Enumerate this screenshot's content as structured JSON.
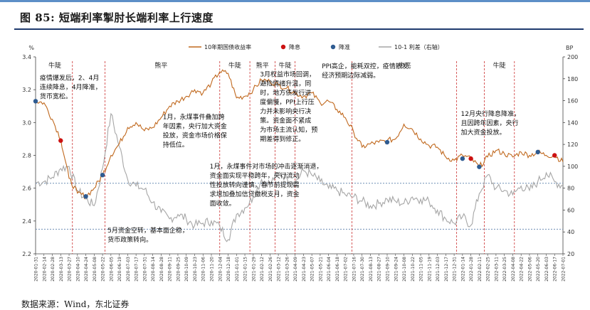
{
  "figure": {
    "title": "图  85:  短端利率掣肘长端利率上行速度",
    "source": "数据来源：Wind，东北证券"
  },
  "chart_data": {
    "type": "line",
    "title": "",
    "left_axis": {
      "unit": "%",
      "ylim": [
        2.2,
        3.4
      ],
      "ticks": [
        "2.2",
        "2.4",
        "2.6",
        "2.8",
        "3.0",
        "3.2",
        "3.4"
      ]
    },
    "right_axis": {
      "unit": "BP",
      "ylim": [
        20,
        200
      ],
      "ticks": [
        "20",
        "40",
        "60",
        "80",
        "100",
        "120",
        "140",
        "160",
        "180",
        "200"
      ]
    },
    "x_ticks": [
      "2020-01-31",
      "2020-02-14",
      "2020-02-28",
      "2020-03-13",
      "2020-03-27",
      "2020-04-10",
      "2020-04-24",
      "2020-05-08",
      "2020-05-22",
      "2020-06-05",
      "2020-06-19",
      "2020-07-03",
      "2020-07-17",
      "2020-07-31",
      "2020-08-14",
      "2020-08-28",
      "2020-09-11",
      "2020-09-25",
      "2020-10-09",
      "2020-10-23",
      "2020-11-06",
      "2020-11-20",
      "2020-12-04",
      "2020-12-18",
      "2021-01-01",
      "2021-01-15",
      "2021-01-29",
      "2021-02-12",
      "2021-02-26",
      "2021-03-12",
      "2021-03-26",
      "2021-04-09",
      "2021-04-23",
      "2021-05-07",
      "2021-05-21",
      "2021-06-04",
      "2021-06-18",
      "2021-07-02",
      "2021-07-16",
      "2021-07-30",
      "2021-08-13",
      "2021-08-27",
      "2021-09-10",
      "2021-09-24",
      "2021-10-08",
      "2021-10-22",
      "2021-11-05",
      "2021-11-19",
      "2021-12-03",
      "2021-12-17",
      "2021-12-31",
      "2022-01-14",
      "2022-01-28",
      "2022-02-11",
      "2022-02-25",
      "2022-03-11",
      "2022-03-25",
      "2022-04-08",
      "2022-04-22",
      "2022-05-06",
      "2022-05-20",
      "2022-06-03",
      "2022-06-17",
      "2022-07-01"
    ],
    "legend": [
      "10年期国债收益率",
      "降息",
      "降准",
      "10-1 利差（右轴）"
    ],
    "legend_position": "top",
    "colors": {
      "yield": "#c0681d",
      "cut_rate": "#cc1111",
      "rrr": "#2e5b91",
      "spread": "#a6a6a6",
      "hline": "#6f8fb5",
      "vline": "#cc3333"
    },
    "yield_anchors": [
      [
        0,
        3.13
      ],
      [
        1,
        3.12
      ],
      [
        2,
        3.02
      ],
      [
        3,
        2.9
      ],
      [
        4,
        2.66
      ],
      [
        5,
        2.57
      ],
      [
        6,
        2.55
      ],
      [
        7,
        2.6
      ],
      [
        8,
        2.68
      ],
      [
        9,
        2.8
      ],
      [
        10,
        2.87
      ],
      [
        11,
        2.97
      ],
      [
        12,
        3.0
      ],
      [
        13,
        2.95
      ],
      [
        14,
        2.97
      ],
      [
        15,
        3.03
      ],
      [
        16,
        3.1
      ],
      [
        17,
        3.13
      ],
      [
        18,
        3.16
      ],
      [
        19,
        3.2
      ],
      [
        20,
        3.18
      ],
      [
        21,
        3.24
      ],
      [
        22,
        3.31
      ],
      [
        23,
        3.3
      ],
      [
        24,
        3.15
      ],
      [
        25,
        3.16
      ],
      [
        26,
        3.2
      ],
      [
        27,
        3.26
      ],
      [
        28,
        3.25
      ],
      [
        29,
        3.23
      ],
      [
        30,
        3.21
      ],
      [
        31,
        3.18
      ],
      [
        32,
        3.16
      ],
      [
        33,
        3.18
      ],
      [
        34,
        3.12
      ],
      [
        35,
        3.13
      ],
      [
        36,
        3.08
      ],
      [
        37,
        3.03
      ],
      [
        38,
        2.94
      ],
      [
        39,
        2.85
      ],
      [
        40,
        2.87
      ],
      [
        41,
        2.88
      ],
      [
        42,
        2.89
      ],
      [
        43,
        2.9
      ],
      [
        44,
        2.99
      ],
      [
        45,
        2.96
      ],
      [
        46,
        2.9
      ],
      [
        47,
        2.86
      ],
      [
        48,
        2.85
      ],
      [
        49,
        2.79
      ],
      [
        50,
        2.77
      ],
      [
        51,
        2.8
      ],
      [
        52,
        2.78
      ],
      [
        53,
        2.73
      ],
      [
        54,
        2.79
      ],
      [
        55,
        2.83
      ],
      [
        56,
        2.81
      ],
      [
        57,
        2.79
      ],
      [
        58,
        2.82
      ],
      [
        59,
        2.8
      ],
      [
        60,
        2.82
      ],
      [
        61,
        2.8
      ],
      [
        62,
        2.8
      ],
      [
        63,
        2.76
      ]
    ],
    "spread_anchors": [
      [
        0,
        85
      ],
      [
        1,
        86
      ],
      [
        2,
        90
      ],
      [
        3,
        98
      ],
      [
        4,
        100
      ],
      [
        5,
        78
      ],
      [
        6,
        70
      ],
      [
        7,
        64
      ],
      [
        8,
        98
      ],
      [
        9,
        148
      ],
      [
        10,
        118
      ],
      [
        11,
        88
      ],
      [
        12,
        82
      ],
      [
        13,
        79
      ],
      [
        14,
        67
      ],
      [
        15,
        58
      ],
      [
        16,
        52
      ],
      [
        17,
        56
      ],
      [
        18,
        52
      ],
      [
        19,
        46
      ],
      [
        20,
        48
      ],
      [
        21,
        50
      ],
      [
        22,
        45
      ],
      [
        23,
        33
      ],
      [
        24,
        56
      ],
      [
        25,
        62
      ],
      [
        26,
        72
      ],
      [
        27,
        88
      ],
      [
        28,
        84
      ],
      [
        29,
        94
      ],
      [
        30,
        90
      ],
      [
        31,
        85
      ],
      [
        32,
        96
      ],
      [
        33,
        92
      ],
      [
        34,
        86
      ],
      [
        35,
        80
      ],
      [
        36,
        78
      ],
      [
        37,
        74
      ],
      [
        38,
        72
      ],
      [
        39,
        68
      ],
      [
        40,
        64
      ],
      [
        41,
        66
      ],
      [
        42,
        70
      ],
      [
        43,
        68
      ],
      [
        44,
        66
      ],
      [
        45,
        72
      ],
      [
        46,
        70
      ],
      [
        47,
        68
      ],
      [
        48,
        60
      ],
      [
        49,
        52
      ],
      [
        50,
        48
      ],
      [
        51,
        54
      ],
      [
        52,
        46
      ],
      [
        53,
        75
      ],
      [
        54,
        92
      ],
      [
        55,
        80
      ],
      [
        56,
        78
      ],
      [
        57,
        74
      ],
      [
        58,
        82
      ],
      [
        59,
        78
      ],
      [
        60,
        86
      ],
      [
        61,
        94
      ],
      [
        62,
        86
      ],
      [
        63,
        82
      ]
    ],
    "cut_rate_markers": [
      [
        3,
        2.89
      ],
      [
        52,
        2.78
      ],
      [
        62,
        2.8
      ]
    ],
    "rrr_markers": [
      [
        0,
        3.13
      ],
      [
        6,
        2.55
      ],
      [
        8,
        2.68
      ],
      [
        42,
        2.88
      ],
      [
        51,
        2.78
      ],
      [
        53,
        2.73
      ],
      [
        60,
        2.82
      ]
    ],
    "hlines_left": [
      2.63,
      2.35
    ],
    "vlines": [
      4.4,
      8.3,
      22.0,
      25.6,
      28.6,
      31.0,
      37.8,
      50.3,
      53.6,
      57.2
    ],
    "phases": [
      {
        "label": "牛陡",
        "x": 2.3
      },
      {
        "label": "熊平",
        "x": 15.0
      },
      {
        "label": "牛陡",
        "x": 23.8
      },
      {
        "label": "熊平",
        "x": 27.1
      },
      {
        "label": "牛陡",
        "x": 29.8
      },
      {
        "label": "牛平",
        "x": 44.1
      },
      {
        "label": "牛陡",
        "x": 55.4
      }
    ],
    "annotations": [
      {
        "id": "a1",
        "x": 0.5,
        "y": 3.26,
        "lines": [
          "疫情爆发后，2、4月",
          "连续降息，4月降准，",
          "货币宽松。"
        ]
      },
      {
        "id": "a2",
        "x": 15.2,
        "y": 3.02,
        "lines": [
          "1月，永煤事件叠加跨",
          "年因素，央行加大资金",
          "投放，资金市场价格保",
          "持低位。"
        ]
      },
      {
        "id": "a3",
        "x": 26.8,
        "y": 3.28,
        "lines": [
          "3月权益市场回调，",
          "避险情绪升温，同",
          "时，地方债发行进",
          "度偏慢，PPI上行压",
          "力并未影响央行决",
          "策。资金面不紧成",
          "为市场主流认知，预",
          "期差得到修正。"
        ]
      },
      {
        "id": "a4",
        "x": 34.2,
        "y": 3.33,
        "lines": [
          "PPI高企，能耗双控，疫情散发。",
          "经济预期边际减弱。"
        ]
      },
      {
        "id": "a5",
        "x": 20.8,
        "y": 2.72,
        "lines": [
          "1月，永煤事件对市场的冲击逐渐消退，",
          "资金面实现平稳跨年，央行流动",
          "性投放转向谨慎，春节前提现需",
          "求增加叠加信贷缴税支月，资金",
          "面收敛。"
        ]
      },
      {
        "id": "a6",
        "x": 8.6,
        "y": 2.33,
        "lines": [
          "5月资金空转，基本面企稳，",
          "货币政策转向。"
        ]
      },
      {
        "id": "a7",
        "x": 50.8,
        "y": 3.04,
        "lines": [
          "12月央行降息降准，",
          "且因跨年因素，央行",
          "加大资金投放。"
        ]
      }
    ]
  }
}
